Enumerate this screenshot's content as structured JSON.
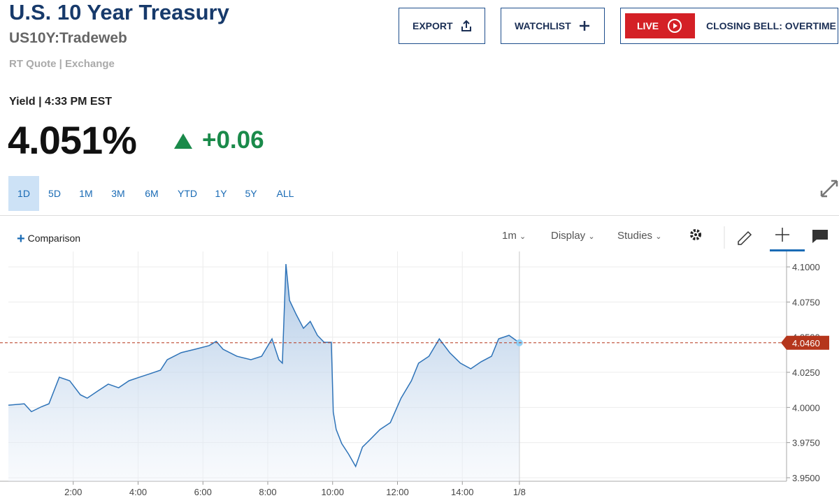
{
  "header": {
    "title": "U.S. 10 Year Treasury",
    "symbol": "US10Y:Tradeweb",
    "quote_source": "RT Quote | Exchange",
    "yield_time": "Yield | 4:33 PM EST",
    "price": "4.051%",
    "change": "+0.06"
  },
  "buttons": {
    "export": "EXPORT",
    "watchlist": "WATCHLIST",
    "live": "LIVE",
    "live_show": "CLOSING BELL: OVERTIME"
  },
  "ranges": [
    "1D",
    "5D",
    "1M",
    "3M",
    "6M",
    "YTD",
    "1Y",
    "5Y",
    "ALL"
  ],
  "toolbar": {
    "comparison": "Comparison",
    "interval": "1m",
    "display": "Display",
    "studies": "Studies"
  },
  "chart_data": {
    "type": "line",
    "x": [
      0,
      0.49,
      0.71,
      1.03,
      1.25,
      1.57,
      1.89,
      2.22,
      2.43,
      2.75,
      3.08,
      3.4,
      3.72,
      4.04,
      4.37,
      4.69,
      4.9,
      5.33,
      5.76,
      6.19,
      6.41,
      6.62,
      7.05,
      7.48,
      7.81,
      8.13,
      8.34,
      8.45,
      8.56,
      8.67,
      8.88,
      9.1,
      9.31,
      9.53,
      9.74,
      9.96,
      10.02,
      10.11,
      10.28,
      10.49,
      10.71,
      10.92,
      11.14,
      11.46,
      11.78,
      12.11,
      12.43,
      12.65,
      12.97,
      13.29,
      13.61,
      13.94,
      14.26,
      14.58,
      14.9,
      15.12,
      15.44,
      15.76
    ],
    "series": [
      {
        "color": "#2e73b8",
        "values": [
          4.0016,
          4.0026,
          3.997,
          4.0006,
          4.0026,
          4.0215,
          4.019,
          4.009,
          4.0066,
          4.0116,
          4.0166,
          4.014,
          4.019,
          4.0215,
          4.024,
          4.0265,
          4.034,
          4.039,
          4.0414,
          4.044,
          4.047,
          4.0414,
          4.0364,
          4.034,
          4.0364,
          4.0488,
          4.034,
          4.0315,
          4.102,
          4.0762,
          4.066,
          4.0563,
          4.0612,
          4.0513,
          4.0463,
          4.0463,
          3.9967,
          3.9843,
          3.9743,
          3.9669,
          3.958,
          3.9718,
          3.9768,
          3.9843,
          3.9892,
          4.0066,
          4.019,
          4.0315,
          4.0364,
          4.0488,
          4.039,
          4.0315,
          4.0275,
          4.0325,
          4.0364,
          4.0488,
          4.0513,
          4.046
        ]
      }
    ],
    "xlim": [
      0,
      24
    ],
    "xticks": [
      {
        "value": 2,
        "label": "2:00"
      },
      {
        "value": 4,
        "label": "4:00"
      },
      {
        "value": 6,
        "label": "6:00"
      },
      {
        "value": 8,
        "label": "8:00"
      },
      {
        "value": 10,
        "label": "10:00"
      },
      {
        "value": 12,
        "label": "12:00"
      },
      {
        "value": 14,
        "label": "14:00"
      },
      {
        "value": 15.76,
        "label": "1/8"
      }
    ],
    "ylim": [
      3.9475,
      4.1075
    ],
    "yticks": [
      {
        "value": 3.95,
        "label": "3.9500"
      },
      {
        "value": 3.975,
        "label": "3.9750"
      },
      {
        "value": 4,
        "label": "4.0000"
      },
      {
        "value": 4.025,
        "label": "4.0250"
      },
      {
        "value": 4.05,
        "label": "4.0500"
      },
      {
        "value": 4.075,
        "label": "4.0750"
      },
      {
        "value": 4.1,
        "label": "4.1000"
      }
    ],
    "price_line": {
      "value": 4.046,
      "label": "4.0460",
      "color": "#b5361c"
    },
    "grid": true
  }
}
